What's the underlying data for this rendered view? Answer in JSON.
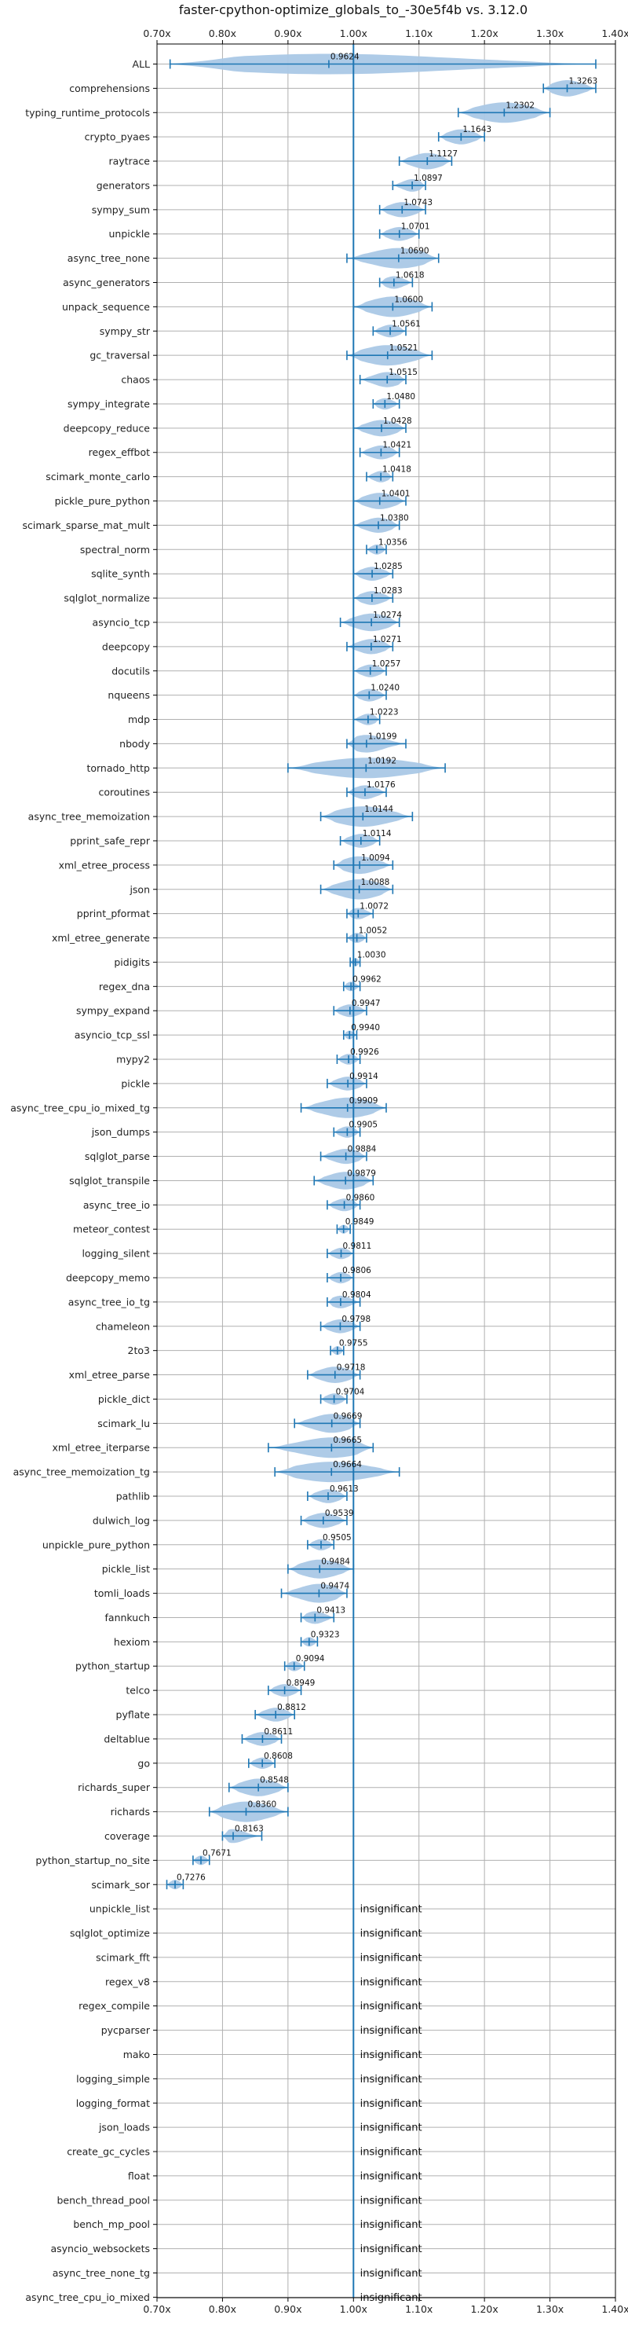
{
  "chart_data": {
    "type": "violin",
    "title": "faster-cpython-optimize_globals_to_-30e5f4b vs. 3.12.0",
    "xlim": [
      0.7,
      1.4
    ],
    "xticks": [
      0.7,
      0.8,
      0.9,
      1.0,
      1.1,
      1.2,
      1.3,
      1.4
    ],
    "xtick_labels": [
      "0.70x",
      "0.80x",
      "0.90x",
      "1.00x",
      "1.10x",
      "1.20x",
      "1.30x",
      "1.40x"
    ],
    "reference_line": 1.0,
    "grid": true,
    "insignificant_label": "insignificant",
    "benchmarks": [
      {
        "name": "ALL",
        "value": 0.9624,
        "label": "0.9624",
        "min": 0.72,
        "max": 1.37
      },
      {
        "name": "comprehensions",
        "value": 1.3263,
        "label": "1.3263",
        "min": 1.29,
        "max": 1.37
      },
      {
        "name": "typing_runtime_protocols",
        "value": 1.2302,
        "label": "1.2302",
        "min": 1.16,
        "max": 1.3
      },
      {
        "name": "crypto_pyaes",
        "value": 1.1643,
        "label": "1.1643",
        "min": 1.13,
        "max": 1.2
      },
      {
        "name": "raytrace",
        "value": 1.1127,
        "label": "1.1127",
        "min": 1.07,
        "max": 1.15
      },
      {
        "name": "generators",
        "value": 1.0897,
        "label": "1.0897",
        "min": 1.06,
        "max": 1.11
      },
      {
        "name": "sympy_sum",
        "value": 1.0743,
        "label": "1.0743",
        "min": 1.04,
        "max": 1.11
      },
      {
        "name": "unpickle",
        "value": 1.0701,
        "label": "1.0701",
        "min": 1.04,
        "max": 1.1
      },
      {
        "name": "async_tree_none",
        "value": 1.069,
        "label": "1.0690",
        "min": 0.99,
        "max": 1.13
      },
      {
        "name": "async_generators",
        "value": 1.0618,
        "label": "1.0618",
        "min": 1.04,
        "max": 1.09
      },
      {
        "name": "unpack_sequence",
        "value": 1.06,
        "label": "1.0600",
        "min": 1.0,
        "max": 1.12
      },
      {
        "name": "sympy_str",
        "value": 1.0561,
        "label": "1.0561",
        "min": 1.03,
        "max": 1.08
      },
      {
        "name": "gc_traversal",
        "value": 1.0521,
        "label": "1.0521",
        "min": 0.99,
        "max": 1.12
      },
      {
        "name": "chaos",
        "value": 1.0515,
        "label": "1.0515",
        "min": 1.01,
        "max": 1.08
      },
      {
        "name": "sympy_integrate",
        "value": 1.048,
        "label": "1.0480",
        "min": 1.03,
        "max": 1.07
      },
      {
        "name": "deepcopy_reduce",
        "value": 1.0428,
        "label": "1.0428",
        "min": 1.0,
        "max": 1.08
      },
      {
        "name": "regex_effbot",
        "value": 1.0421,
        "label": "1.0421",
        "min": 1.01,
        "max": 1.07
      },
      {
        "name": "scimark_monte_carlo",
        "value": 1.0418,
        "label": "1.0418",
        "min": 1.02,
        "max": 1.06
      },
      {
        "name": "pickle_pure_python",
        "value": 1.0401,
        "label": "1.0401",
        "min": 1.0,
        "max": 1.08
      },
      {
        "name": "scimark_sparse_mat_mult",
        "value": 1.038,
        "label": "1.0380",
        "min": 1.0,
        "max": 1.07
      },
      {
        "name": "spectral_norm",
        "value": 1.0356,
        "label": "1.0356",
        "min": 1.02,
        "max": 1.05
      },
      {
        "name": "sqlite_synth",
        "value": 1.0285,
        "label": "1.0285",
        "min": 1.0,
        "max": 1.06
      },
      {
        "name": "sqlglot_normalize",
        "value": 1.0283,
        "label": "1.0283",
        "min": 1.0,
        "max": 1.06
      },
      {
        "name": "asyncio_tcp",
        "value": 1.0274,
        "label": "1.0274",
        "min": 0.98,
        "max": 1.07
      },
      {
        "name": "deepcopy",
        "value": 1.0271,
        "label": "1.0271",
        "min": 0.99,
        "max": 1.06
      },
      {
        "name": "docutils",
        "value": 1.0257,
        "label": "1.0257",
        "min": 1.0,
        "max": 1.05
      },
      {
        "name": "nqueens",
        "value": 1.024,
        "label": "1.0240",
        "min": 1.0,
        "max": 1.05
      },
      {
        "name": "mdp",
        "value": 1.0223,
        "label": "1.0223",
        "min": 1.0,
        "max": 1.04
      },
      {
        "name": "nbody",
        "value": 1.0199,
        "label": "1.0199",
        "min": 0.99,
        "max": 1.08
      },
      {
        "name": "tornado_http",
        "value": 1.0192,
        "label": "1.0192",
        "min": 0.9,
        "max": 1.14
      },
      {
        "name": "coroutines",
        "value": 1.0176,
        "label": "1.0176",
        "min": 0.99,
        "max": 1.05
      },
      {
        "name": "async_tree_memoization",
        "value": 1.0144,
        "label": "1.0144",
        "min": 0.95,
        "max": 1.09
      },
      {
        "name": "pprint_safe_repr",
        "value": 1.0114,
        "label": "1.0114",
        "min": 0.98,
        "max": 1.04
      },
      {
        "name": "xml_etree_process",
        "value": 1.0094,
        "label": "1.0094",
        "min": 0.97,
        "max": 1.06
      },
      {
        "name": "json",
        "value": 1.0088,
        "label": "1.0088",
        "min": 0.95,
        "max": 1.06
      },
      {
        "name": "pprint_pformat",
        "value": 1.0072,
        "label": "1.0072",
        "min": 0.99,
        "max": 1.03
      },
      {
        "name": "xml_etree_generate",
        "value": 1.0052,
        "label": "1.0052",
        "min": 0.99,
        "max": 1.02
      },
      {
        "name": "pidigits",
        "value": 1.003,
        "label": "1.0030",
        "min": 0.995,
        "max": 1.01
      },
      {
        "name": "regex_dna",
        "value": 0.9962,
        "label": "0.9962",
        "min": 0.985,
        "max": 1.01
      },
      {
        "name": "sympy_expand",
        "value": 0.9947,
        "label": "0.9947",
        "min": 0.97,
        "max": 1.02
      },
      {
        "name": "asyncio_tcp_ssl",
        "value": 0.994,
        "label": "0.9940",
        "min": 0.985,
        "max": 1.005
      },
      {
        "name": "mypy2",
        "value": 0.9926,
        "label": "0.9926",
        "min": 0.975,
        "max": 1.01
      },
      {
        "name": "pickle",
        "value": 0.9914,
        "label": "0.9914",
        "min": 0.96,
        "max": 1.02
      },
      {
        "name": "async_tree_cpu_io_mixed_tg",
        "value": 0.9909,
        "label": "0.9909",
        "min": 0.92,
        "max": 1.05
      },
      {
        "name": "json_dumps",
        "value": 0.9905,
        "label": "0.9905",
        "min": 0.97,
        "max": 1.01
      },
      {
        "name": "sqlglot_parse",
        "value": 0.9884,
        "label": "0.9884",
        "min": 0.95,
        "max": 1.02
      },
      {
        "name": "sqlglot_transpile",
        "value": 0.9879,
        "label": "0.9879",
        "min": 0.94,
        "max": 1.03
      },
      {
        "name": "async_tree_io",
        "value": 0.986,
        "label": "0.9860",
        "min": 0.96,
        "max": 1.01
      },
      {
        "name": "meteor_contest",
        "value": 0.9849,
        "label": "0.9849",
        "min": 0.975,
        "max": 0.995
      },
      {
        "name": "logging_silent",
        "value": 0.9811,
        "label": "0.9811",
        "min": 0.96,
        "max": 1.0
      },
      {
        "name": "deepcopy_memo",
        "value": 0.9806,
        "label": "0.9806",
        "min": 0.96,
        "max": 1.0
      },
      {
        "name": "async_tree_io_tg",
        "value": 0.9804,
        "label": "0.9804",
        "min": 0.96,
        "max": 1.01
      },
      {
        "name": "chameleon",
        "value": 0.9798,
        "label": "0.9798",
        "min": 0.95,
        "max": 1.01
      },
      {
        "name": "2to3",
        "value": 0.9755,
        "label": "0.9755",
        "min": 0.965,
        "max": 0.985
      },
      {
        "name": "xml_etree_parse",
        "value": 0.9718,
        "label": "0.9718",
        "min": 0.93,
        "max": 1.01
      },
      {
        "name": "pickle_dict",
        "value": 0.9704,
        "label": "0.9704",
        "min": 0.95,
        "max": 0.99
      },
      {
        "name": "scimark_lu",
        "value": 0.9669,
        "label": "0.9669",
        "min": 0.91,
        "max": 1.01
      },
      {
        "name": "xml_etree_iterparse",
        "value": 0.9665,
        "label": "0.9665",
        "min": 0.87,
        "max": 1.03
      },
      {
        "name": "async_tree_memoization_tg",
        "value": 0.9664,
        "label": "0.9664",
        "min": 0.88,
        "max": 1.07
      },
      {
        "name": "pathlib",
        "value": 0.9613,
        "label": "0.9613",
        "min": 0.93,
        "max": 0.99
      },
      {
        "name": "dulwich_log",
        "value": 0.9539,
        "label": "0.9539",
        "min": 0.92,
        "max": 0.99
      },
      {
        "name": "unpickle_pure_python",
        "value": 0.9505,
        "label": "0.9505",
        "min": 0.93,
        "max": 0.97
      },
      {
        "name": "pickle_list",
        "value": 0.9484,
        "label": "0.9484",
        "min": 0.9,
        "max": 1.0
      },
      {
        "name": "tomli_loads",
        "value": 0.9474,
        "label": "0.9474",
        "min": 0.89,
        "max": 0.99
      },
      {
        "name": "fannkuch",
        "value": 0.9413,
        "label": "0.9413",
        "min": 0.92,
        "max": 0.97
      },
      {
        "name": "hexiom",
        "value": 0.9323,
        "label": "0.9323",
        "min": 0.92,
        "max": 0.945
      },
      {
        "name": "python_startup",
        "value": 0.9094,
        "label": "0.9094",
        "min": 0.895,
        "max": 0.925
      },
      {
        "name": "telco",
        "value": 0.8949,
        "label": "0.8949",
        "min": 0.87,
        "max": 0.92
      },
      {
        "name": "pyflate",
        "value": 0.8812,
        "label": "0.8812",
        "min": 0.85,
        "max": 0.91
      },
      {
        "name": "deltablue",
        "value": 0.8611,
        "label": "0.8611",
        "min": 0.83,
        "max": 0.89
      },
      {
        "name": "go",
        "value": 0.8608,
        "label": "0.8608",
        "min": 0.84,
        "max": 0.88
      },
      {
        "name": "richards_super",
        "value": 0.8548,
        "label": "0.8548",
        "min": 0.81,
        "max": 0.9
      },
      {
        "name": "richards",
        "value": 0.836,
        "label": "0.8360",
        "min": 0.78,
        "max": 0.9
      },
      {
        "name": "coverage",
        "value": 0.8163,
        "label": "0.8163",
        "min": 0.8,
        "max": 0.86
      },
      {
        "name": "python_startup_no_site",
        "value": 0.7671,
        "label": "0.7671",
        "min": 0.755,
        "max": 0.78
      },
      {
        "name": "scimark_sor",
        "value": 0.7276,
        "label": "0.7276",
        "min": 0.715,
        "max": 0.74
      },
      {
        "name": "unpickle_list",
        "insignificant": true
      },
      {
        "name": "sqlglot_optimize",
        "insignificant": true
      },
      {
        "name": "scimark_fft",
        "insignificant": true
      },
      {
        "name": "regex_v8",
        "insignificant": true
      },
      {
        "name": "regex_compile",
        "insignificant": true
      },
      {
        "name": "pycparser",
        "insignificant": true
      },
      {
        "name": "mako",
        "insignificant": true
      },
      {
        "name": "logging_simple",
        "insignificant": true
      },
      {
        "name": "logging_format",
        "insignificant": true
      },
      {
        "name": "json_loads",
        "insignificant": true
      },
      {
        "name": "create_gc_cycles",
        "insignificant": true
      },
      {
        "name": "float",
        "insignificant": true
      },
      {
        "name": "bench_thread_pool",
        "insignificant": true
      },
      {
        "name": "bench_mp_pool",
        "insignificant": true
      },
      {
        "name": "asyncio_websockets",
        "insignificant": true
      },
      {
        "name": "async_tree_none_tg",
        "insignificant": true
      },
      {
        "name": "async_tree_cpu_io_mixed",
        "insignificant": true
      }
    ]
  },
  "colors": {
    "violin_fill": "#aac8e6",
    "line": "#1f77b4",
    "grid": "#b0b0b0",
    "axis": "#000000"
  }
}
